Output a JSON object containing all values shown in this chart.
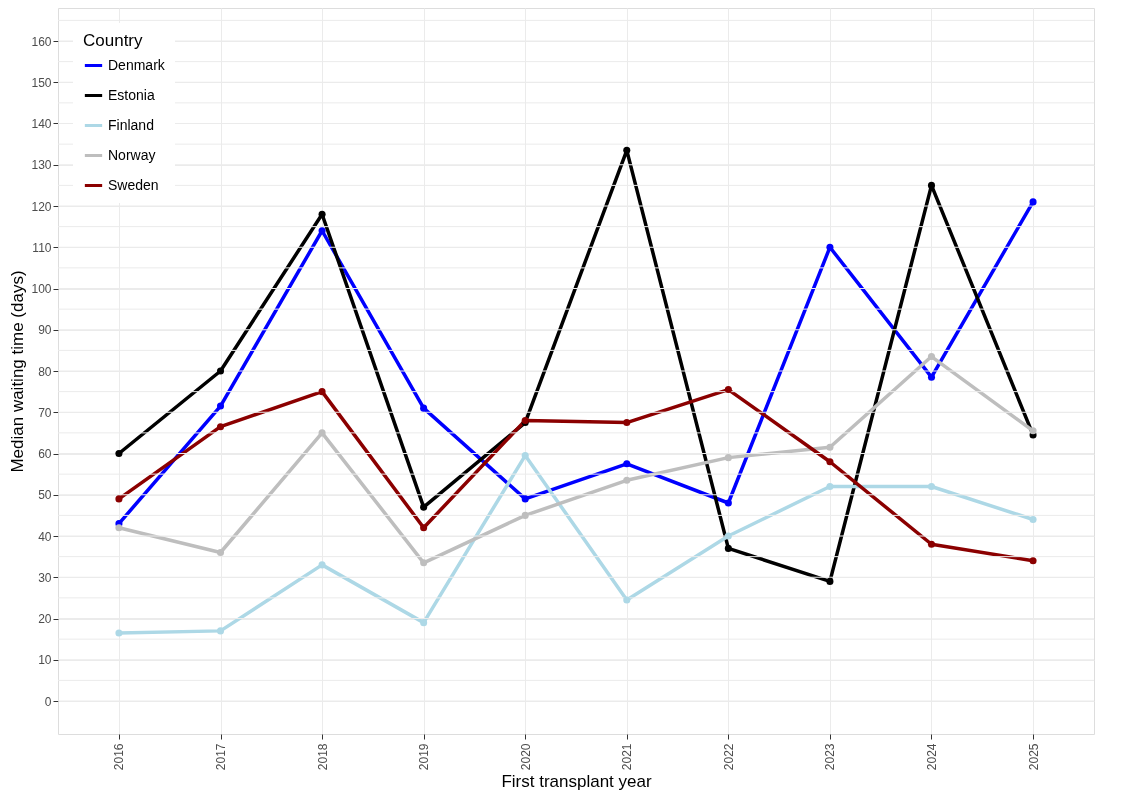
{
  "chart_data": {
    "type": "line",
    "xlabel": "First transplant year",
    "ylabel": "Median waiting time (days)",
    "legend_title": "Country",
    "legend": "top left",
    "grid": true,
    "marker": "circle",
    "line_style": "solid",
    "categories": [
      "2016",
      "2017",
      "2018",
      "2019",
      "2020",
      "2021",
      "2022",
      "2023",
      "2024",
      "2025"
    ],
    "ylim": [
      -8,
      168
    ],
    "yticks": [
      0,
      {
        "value": 5,
        "label": null
      },
      10,
      {
        "value": 15,
        "label": null
      },
      20,
      {
        "value": 25,
        "label": null
      },
      30,
      {
        "value": 35,
        "label": null
      },
      40,
      {
        "value": 45,
        "label": null
      },
      50,
      {
        "value": 55,
        "label": null
      },
      60,
      {
        "value": 65,
        "label": null
      },
      70,
      {
        "value": 75,
        "label": null
      },
      80,
      {
        "value": 85,
        "label": null
      },
      90,
      {
        "value": 95,
        "label": null
      },
      100,
      {
        "value": 105,
        "label": null
      },
      110,
      {
        "value": 115,
        "label": null
      },
      120,
      {
        "value": 125,
        "label": null
      },
      130,
      {
        "value": 135,
        "label": null
      },
      140,
      {
        "value": 145,
        "label": null
      },
      150,
      {
        "value": 155,
        "label": null
      },
      160,
      {
        "value": 165,
        "label": null
      }
    ],
    "series": [
      {
        "name": "Denmark",
        "color": "#0000ff",
        "values": [
          43,
          71.5,
          114,
          71,
          49,
          57.5,
          48,
          110,
          78.5,
          121
        ]
      },
      {
        "name": "Estonia",
        "color": "#000000",
        "values": [
          60,
          80,
          118,
          47,
          67.5,
          133.5,
          37,
          29,
          125,
          64.5
        ]
      },
      {
        "name": "Finland",
        "color": "#add8e6",
        "values": [
          16.5,
          17,
          33,
          19,
          59.5,
          24.5,
          40,
          52,
          52,
          44
        ]
      },
      {
        "name": "Norway",
        "color": "#bebebe",
        "values": [
          42,
          36,
          65,
          33.5,
          45,
          53.5,
          59,
          61.5,
          83.5,
          65.5
        ]
      },
      {
        "name": "Sweden",
        "color": "#8b0000",
        "values": [
          49,
          66.5,
          75,
          42,
          68,
          67.5,
          75.5,
          58,
          38,
          34
        ]
      }
    ]
  }
}
